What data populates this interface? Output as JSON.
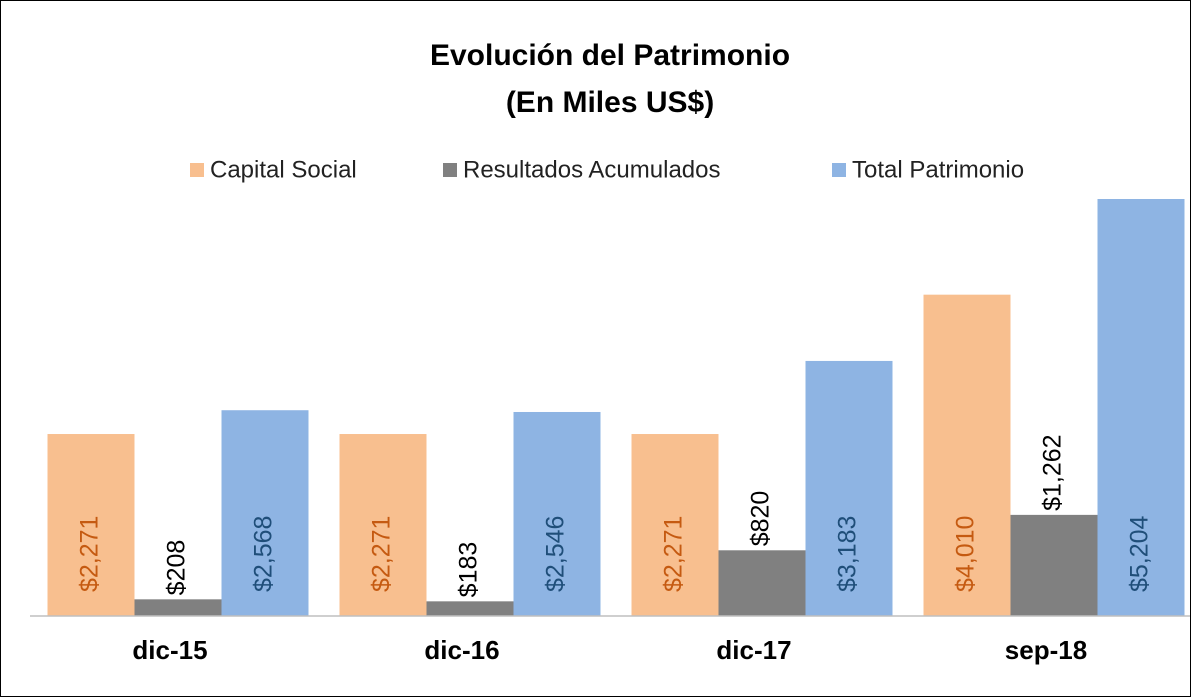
{
  "chart_data": {
    "type": "bar",
    "title": "Evolución del Patrimonio",
    "subtitle": "(En Miles US$)",
    "categories": [
      "dic-15",
      "dic-16",
      "dic-17",
      "sep-18"
    ],
    "legend": "top",
    "series": [
      {
        "name": "Capital Social",
        "color": "#f8bf8f",
        "label_color": "#c55a11",
        "label_position": "inside",
        "values": [
          2271,
          2271,
          2271,
          4010
        ],
        "value_labels": [
          "$2,271",
          "$2,271",
          "$2,271",
          "$4,010"
        ]
      },
      {
        "name": "Resultados Acumulados",
        "color": "#808080",
        "label_color": "#000000",
        "label_position": "outside",
        "values": [
          208,
          183,
          820,
          1262
        ],
        "value_labels": [
          "$208",
          "$183",
          "$820",
          "$1,262"
        ]
      },
      {
        "name": "Total Patrimonio",
        "color": "#8eb4e3",
        "label_color": "#1f4e79",
        "label_position": "inside",
        "values": [
          2568,
          2546,
          3183,
          5204
        ],
        "value_labels": [
          "$2,568",
          "$2,546",
          "$3,183",
          "$5,204"
        ]
      }
    ]
  }
}
